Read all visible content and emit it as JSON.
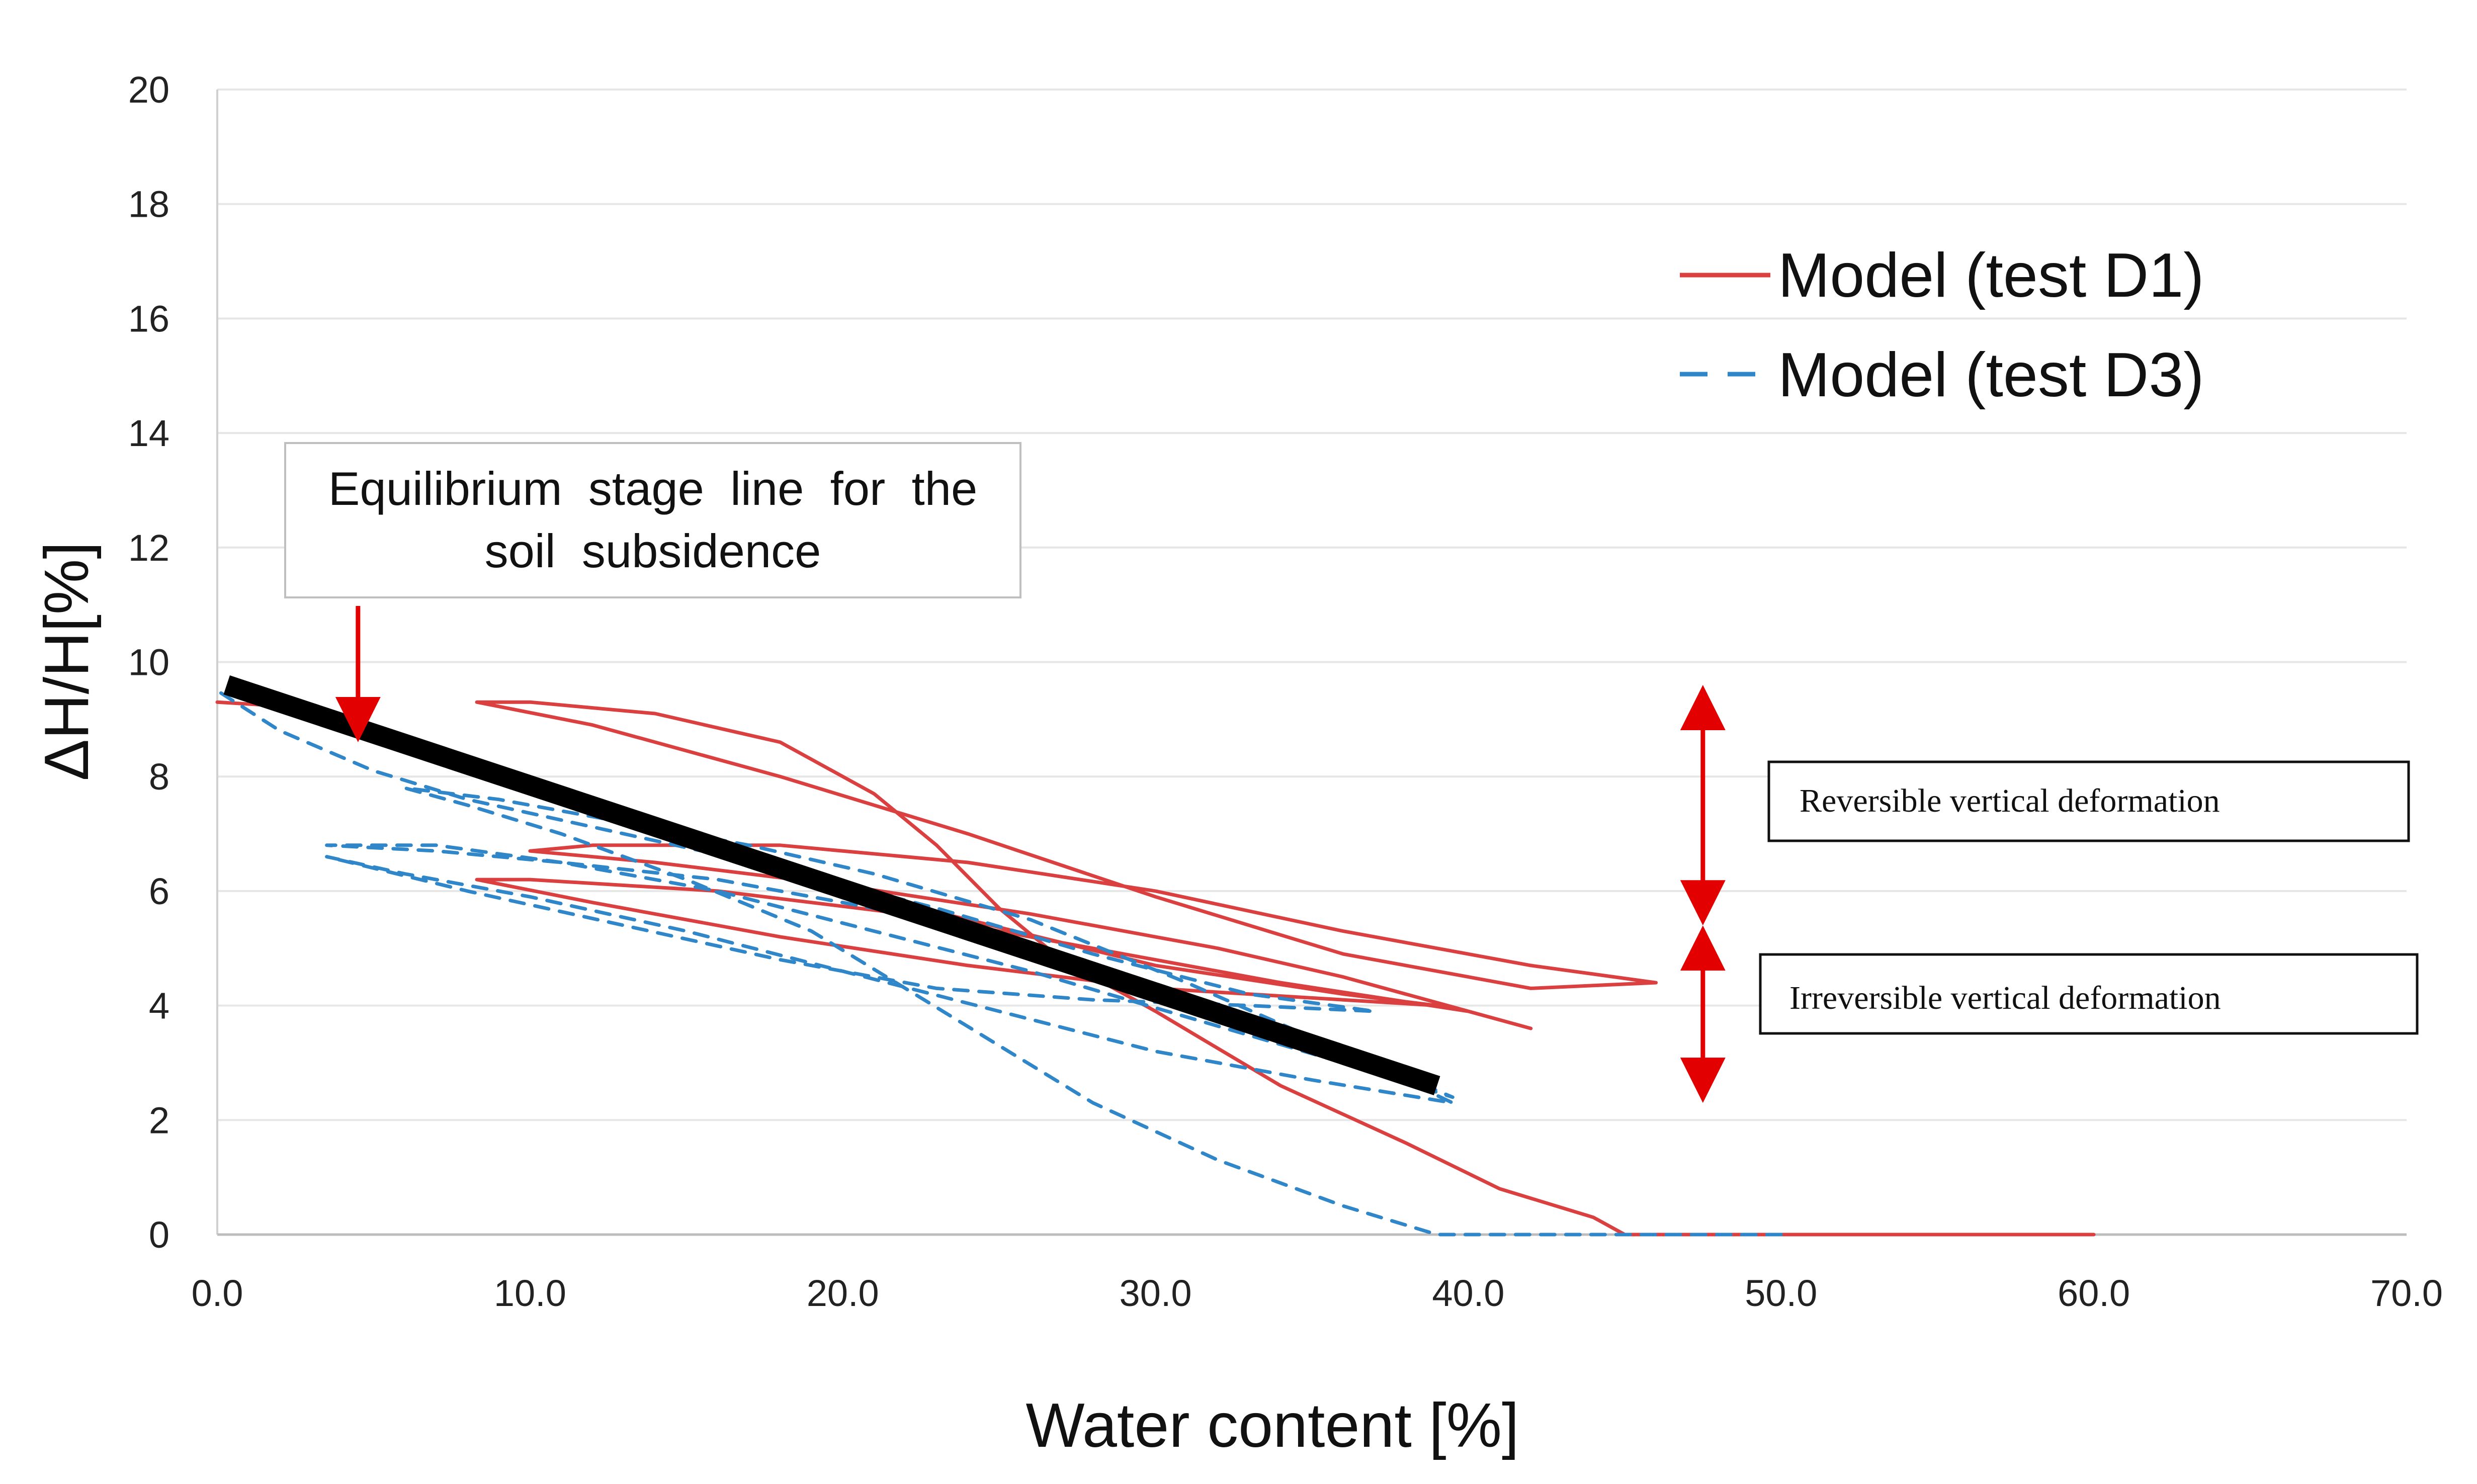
{
  "chart_data": {
    "type": "line",
    "title": "",
    "xlabel": "Water content [%]",
    "ylabel": "ΔH/H[%]",
    "xlim": [
      0,
      70
    ],
    "ylim": [
      0,
      20
    ],
    "x_ticks": [
      0,
      10,
      20,
      30,
      40,
      50,
      60,
      70
    ],
    "x_tick_labels": [
      "0.0",
      "10.0",
      "20.0",
      "30.0",
      "40.0",
      "50.0",
      "60.0",
      "70.0"
    ],
    "y_ticks": [
      0,
      2,
      4,
      6,
      8,
      10,
      12,
      14,
      16,
      18,
      20
    ],
    "y_tick_labels": [
      "0",
      "2",
      "4",
      "6",
      "8",
      "10",
      "12",
      "14",
      "16",
      "18",
      "20"
    ],
    "grid": "horizontal",
    "legend_position": "top-right",
    "colors": {
      "d1": "#d9403f",
      "d3": "#2f86c8",
      "equilibrium": "#000000",
      "arrow": "#e30000",
      "grid": "#e6e6e6"
    },
    "series": [
      {
        "name": "Model (test D1)",
        "style": "solid",
        "color": "#d9403f",
        "x": [
          60,
          50,
          45,
          44,
          41,
          38,
          34,
          30,
          27,
          25,
          23,
          21,
          18,
          14,
          10,
          8.3,
          12,
          18,
          24,
          30,
          36,
          42,
          46,
          42,
          36,
          30,
          24,
          18,
          12,
          10,
          14,
          20,
          26,
          32,
          36,
          42,
          40,
          34,
          28,
          22,
          16,
          10,
          8.3,
          12,
          18,
          24,
          30,
          36,
          39,
          36,
          30,
          24,
          18,
          14,
          10,
          6,
          3,
          0
        ],
        "y": [
          0,
          0,
          0,
          0.3,
          0.8,
          1.6,
          2.6,
          3.9,
          4.8,
          5.7,
          6.8,
          7.7,
          8.6,
          9.1,
          9.3,
          9.3,
          8.9,
          8.0,
          7.0,
          5.9,
          4.9,
          4.3,
          4.4,
          4.7,
          5.3,
          6.0,
          6.5,
          6.8,
          6.8,
          6.7,
          6.5,
          6.1,
          5.6,
          5.0,
          4.5,
          3.6,
          3.9,
          4.4,
          5.0,
          5.6,
          6.0,
          6.2,
          6.2,
          5.8,
          5.2,
          4.7,
          4.3,
          4.1,
          4.0,
          4.2,
          4.7,
          5.5,
          6.3,
          7.0,
          7.8,
          8.6,
          9.2,
          9.3
        ]
      },
      {
        "name": "Model (test D3)",
        "style": "dashed",
        "color": "#2f86c8",
        "x": [
          50,
          45,
          39,
          36,
          32,
          28,
          25,
          22,
          19,
          15,
          11,
          8,
          6,
          9,
          13,
          17,
          21,
          26,
          31,
          36,
          39.5,
          36,
          31,
          26,
          21,
          16,
          11,
          7,
          3.5,
          7,
          11,
          16,
          21,
          26,
          31,
          36,
          39.5,
          35,
          30,
          25,
          20,
          15,
          10,
          6,
          3.5,
          8,
          13,
          18,
          23,
          28,
          33,
          37,
          33,
          28,
          23,
          18,
          13,
          8,
          5,
          2,
          0
        ],
        "y": [
          0,
          0,
          0,
          0.5,
          1.3,
          2.3,
          3.3,
          4.3,
          5.3,
          6.2,
          7.0,
          7.5,
          7.8,
          7.6,
          7.2,
          6.8,
          6.3,
          5.5,
          4.4,
          3.2,
          2.4,
          3.0,
          3.8,
          4.6,
          5.3,
          6.0,
          6.5,
          6.8,
          6.8,
          6.7,
          6.5,
          6.2,
          5.7,
          5.1,
          4.2,
          3.2,
          2.3,
          2.7,
          3.2,
          3.9,
          4.6,
          5.3,
          5.9,
          6.3,
          6.6,
          6.0,
          5.4,
          4.8,
          4.3,
          4.1,
          4.0,
          3.9,
          4.2,
          4.9,
          5.7,
          6.4,
          7.0,
          7.6,
          8.1,
          8.8,
          9.5
        ]
      },
      {
        "name": "Equilibrium stage line",
        "style": "thick",
        "color": "#000000",
        "x": [
          0.3,
          39
        ],
        "y": [
          9.6,
          2.6
        ]
      }
    ],
    "legend": [
      {
        "label": "Model (test D1)",
        "style": "solid",
        "color": "#d9403f"
      },
      {
        "label": "Model (test D3)",
        "style": "dashed",
        "color": "#2f86c8"
      }
    ],
    "annotations": {
      "equilibrium": {
        "line1": "Equilibrium  stage  line  for  the",
        "line2": "soil  subsidence",
        "arrow_tip": [
          4.5,
          8.6
        ]
      },
      "reversible": {
        "label": "Reversible vertical deformation",
        "arrow_x": 47.5,
        "from_y": 5.4,
        "to_y": 9.6
      },
      "irreversible": {
        "label": "Irreversible vertical deformation",
        "arrow_x": 47.5,
        "from_y": 2.3,
        "to_y": 5.4
      }
    }
  }
}
